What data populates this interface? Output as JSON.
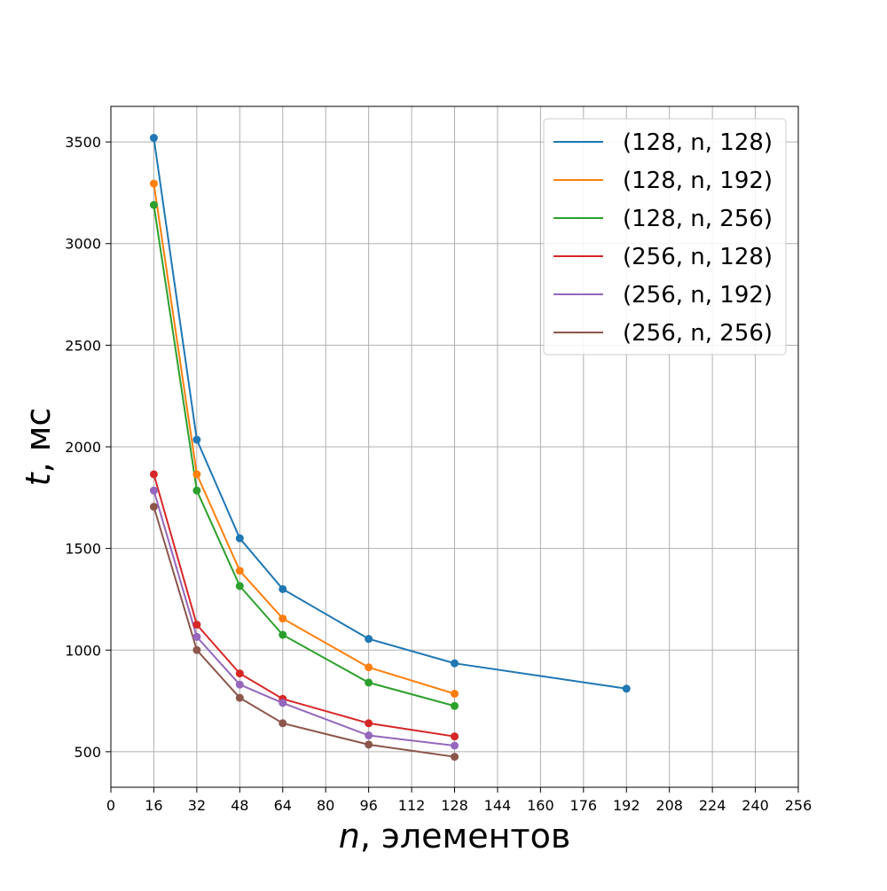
{
  "chart_data": {
    "type": "line",
    "xlabel_var": "n",
    "xlabel_rest": ", элементов",
    "ylabel_var": "t",
    "ylabel_rest": ", мс",
    "xlim": [
      0,
      256
    ],
    "ylim": [
      325,
      3675
    ],
    "xticks": [
      0,
      16,
      32,
      48,
      64,
      80,
      96,
      112,
      128,
      144,
      160,
      176,
      192,
      208,
      224,
      240,
      256
    ],
    "yticks": [
      500,
      1000,
      1500,
      2000,
      2500,
      3000,
      3500
    ],
    "grid": true,
    "legend_position": "top-right",
    "series": [
      {
        "name": "(128, n, 128)",
        "color": "#1f77b4",
        "x": [
          16,
          32,
          48,
          64,
          96,
          128,
          192
        ],
        "y": [
          3520,
          2035,
          1550,
          1300,
          1055,
          935,
          810
        ]
      },
      {
        "name": "(128, n, 192)",
        "color": "#ff7f0e",
        "x": [
          16,
          32,
          48,
          64,
          96,
          128
        ],
        "y": [
          3295,
          1865,
          1390,
          1155,
          915,
          785
        ]
      },
      {
        "name": "(128, n, 256)",
        "color": "#2ca02c",
        "x": [
          16,
          32,
          48,
          64,
          96,
          128
        ],
        "y": [
          3190,
          1785,
          1315,
          1075,
          840,
          725
        ]
      },
      {
        "name": "(256, n, 128)",
        "color": "#d62728",
        "x": [
          16,
          32,
          48,
          64,
          96,
          128
        ],
        "y": [
          1865,
          1125,
          885,
          760,
          640,
          575
        ]
      },
      {
        "name": "(256, n, 192)",
        "color": "#9467bd",
        "x": [
          16,
          32,
          48,
          64,
          96,
          128
        ],
        "y": [
          1785,
          1065,
          830,
          740,
          580,
          530
        ]
      },
      {
        "name": "(256, n, 256)",
        "color": "#8c564b",
        "x": [
          16,
          32,
          48,
          64,
          96,
          128
        ],
        "y": [
          1705,
          1000,
          765,
          640,
          535,
          475
        ]
      }
    ]
  }
}
